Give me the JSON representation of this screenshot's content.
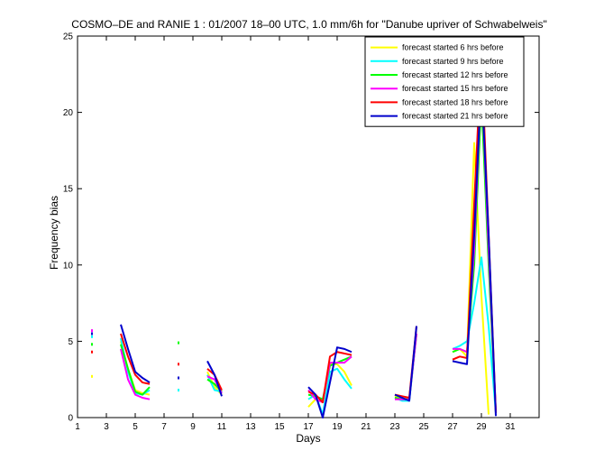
{
  "chart_data": {
    "type": "line",
    "title": "COSMO–DE and RANIE 1 : 01/2007 18–00 UTC, 1.0 mm/6h for \"Danube upriver of Schwabelweis\"",
    "xlabel": "Days",
    "ylabel": "Frequency bias",
    "xlim": [
      1,
      33
    ],
    "ylim": [
      0,
      25
    ],
    "xticks": [
      1,
      3,
      5,
      7,
      9,
      11,
      13,
      15,
      17,
      19,
      21,
      23,
      25,
      27,
      29,
      31
    ],
    "yticks": [
      0,
      5,
      10,
      15,
      20,
      25
    ],
    "legend_position": "top-right",
    "grid": false,
    "x": [
      1,
      1.5,
      2,
      2.5,
      3,
      3.5,
      4,
      4.5,
      5,
      5.5,
      6,
      6.5,
      7,
      7.5,
      8,
      8.5,
      9,
      9.5,
      10,
      10.5,
      11,
      11.5,
      12,
      12.5,
      13,
      13.5,
      14,
      14.5,
      15,
      15.5,
      16,
      16.5,
      17,
      17.5,
      18,
      18.5,
      19,
      19.5,
      20,
      20.5,
      21,
      21.5,
      22,
      22.5,
      23,
      23.5,
      24,
      24.5,
      25,
      25.5,
      26,
      26.5,
      27,
      27.5,
      28,
      28.5,
      29,
      29.5,
      30,
      30.5,
      31,
      31.5,
      32,
      32.5,
      33
    ],
    "series": [
      {
        "name": "forecast started 6 hrs before",
        "color": "#ffff00",
        "values": [
          null,
          null,
          2.7,
          null,
          null,
          null,
          5.0,
          3.2,
          1.8,
          1.6,
          1.5,
          null,
          null,
          null,
          1.8,
          null,
          null,
          null,
          3.0,
          2.0,
          1.5,
          null,
          null,
          null,
          null,
          null,
          null,
          null,
          null,
          null,
          null,
          null,
          0.7,
          1.2,
          1.0,
          3.5,
          3.5,
          3.0,
          2.1,
          null,
          null,
          null,
          null,
          null,
          1.4,
          1.2,
          1.3,
          5.5,
          null,
          null,
          null,
          null,
          4.3,
          4.5,
          4.0,
          18.0,
          8.0,
          0.2,
          null,
          null,
          null,
          null,
          null,
          null,
          null
        ]
      },
      {
        "name": "forecast started 9 hrs before",
        "color": "#00ffff",
        "values": [
          null,
          null,
          5.3,
          null,
          null,
          null,
          5.2,
          3.0,
          1.6,
          1.5,
          1.8,
          null,
          null,
          null,
          1.8,
          null,
          null,
          null,
          2.8,
          1.8,
          1.7,
          null,
          null,
          null,
          null,
          null,
          null,
          null,
          null,
          null,
          null,
          null,
          1.2,
          1.5,
          0.2,
          3.0,
          3.2,
          2.5,
          1.9,
          null,
          null,
          null,
          null,
          null,
          1.3,
          1.1,
          1.1,
          5.5,
          null,
          null,
          null,
          null,
          4.5,
          4.7,
          5.0,
          7.5,
          10.5,
          6.0,
          0.3,
          null,
          null,
          null,
          null,
          null,
          null
        ]
      },
      {
        "name": "forecast started 12 hrs before",
        "color": "#00ff00",
        "values": [
          null,
          null,
          4.8,
          null,
          null,
          null,
          4.8,
          3.2,
          1.7,
          1.5,
          2.0,
          null,
          null,
          null,
          4.9,
          null,
          null,
          null,
          2.5,
          2.2,
          1.7,
          null,
          null,
          null,
          null,
          null,
          null,
          null,
          null,
          null,
          null,
          null,
          1.5,
          1.4,
          1.2,
          3.4,
          3.6,
          3.8,
          4.0,
          null,
          null,
          null,
          null,
          null,
          1.3,
          1.2,
          1.2,
          5.5,
          null,
          null,
          null,
          null,
          4.3,
          4.5,
          4.3,
          10.0,
          21.0,
          10.0,
          0.4,
          null,
          null,
          null,
          null,
          null,
          null
        ]
      },
      {
        "name": "forecast started 15 hrs before",
        "color": "#ff00ff",
        "values": [
          null,
          null,
          5.7,
          null,
          null,
          null,
          4.5,
          2.5,
          1.5,
          1.3,
          1.2,
          null,
          null,
          null,
          2.6,
          null,
          null,
          null,
          2.7,
          2.5,
          1.6,
          null,
          null,
          null,
          null,
          null,
          null,
          null,
          null,
          null,
          null,
          null,
          1.8,
          1.2,
          1.0,
          3.6,
          3.6,
          3.6,
          4.0,
          null,
          null,
          null,
          null,
          null,
          1.2,
          1.2,
          1.2,
          5.5,
          null,
          null,
          null,
          null,
          4.5,
          4.5,
          4.3,
          11.0,
          22.5,
          11.0,
          0.4,
          null,
          null,
          null,
          null,
          null,
          null
        ]
      },
      {
        "name": "forecast started 18 hrs before",
        "color": "#ff0000",
        "values": [
          null,
          null,
          4.3,
          null,
          null,
          null,
          5.5,
          4.0,
          2.8,
          2.3,
          2.2,
          null,
          null,
          null,
          3.5,
          null,
          null,
          null,
          3.2,
          2.8,
          1.8,
          null,
          null,
          null,
          null,
          null,
          null,
          null,
          null,
          null,
          null,
          null,
          1.7,
          1.5,
          1.0,
          4.0,
          4.3,
          4.2,
          4.1,
          null,
          null,
          null,
          null,
          null,
          1.5,
          1.4,
          1.3,
          6.0,
          null,
          null,
          null,
          null,
          3.8,
          4.0,
          3.9,
          14.0,
          23.8,
          12.0,
          0.3,
          null,
          null,
          null,
          null,
          null,
          null
        ]
      },
      {
        "name": "forecast started 21 hrs before",
        "color": "#0000cc",
        "values": [
          null,
          null,
          5.5,
          null,
          null,
          null,
          6.1,
          4.5,
          3.0,
          2.6,
          2.3,
          null,
          null,
          null,
          2.6,
          null,
          null,
          null,
          3.7,
          2.8,
          1.4,
          null,
          null,
          null,
          null,
          null,
          null,
          null,
          null,
          null,
          null,
          null,
          2.0,
          1.5,
          0.0,
          2.3,
          4.6,
          4.5,
          4.3,
          null,
          null,
          null,
          null,
          null,
          1.5,
          1.3,
          1.1,
          6.0,
          null,
          null,
          null,
          null,
          3.7,
          3.6,
          3.5,
          12.0,
          22.2,
          12.0,
          0.1,
          null,
          null,
          null,
          null,
          null,
          null
        ]
      }
    ]
  }
}
